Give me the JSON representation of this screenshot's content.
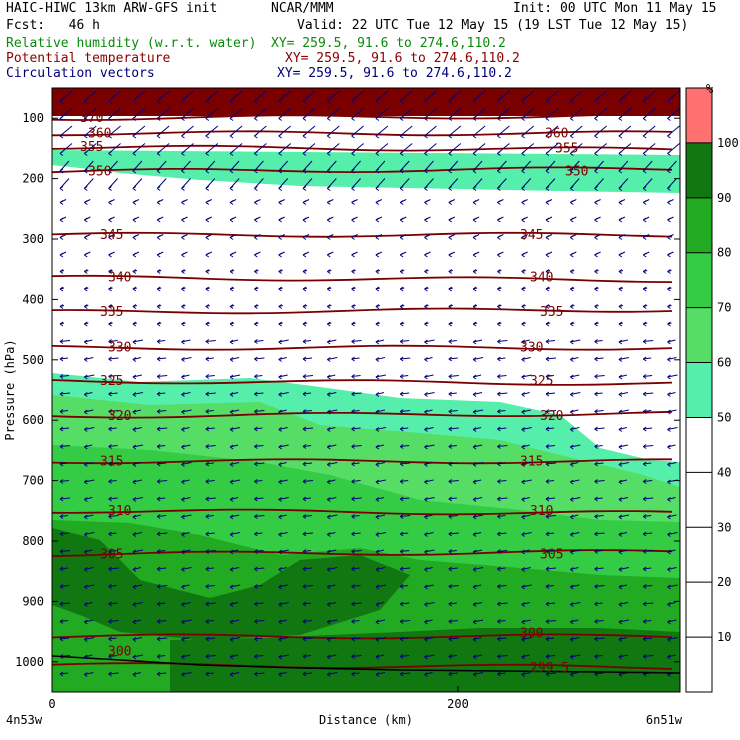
{
  "header": {
    "model_line": "HAIC-HIWC 13km ARW-GFS init",
    "org": "NCAR/MMM",
    "init": "Init: 00 UTC Mon 11 May 15",
    "fcst": "Fcst:   46 h",
    "valid": "Valid: 22 UTC Tue 12 May 15 (19 LST Tue 12 May 15)",
    "rh_label": "Relative humidity (w.r.t. water)",
    "rh_xy": "XY= 259.5, 91.6 to 274.6,110.2",
    "theta_label": "Potential temperature",
    "theta_xy": "XY= 259.5, 91.6 to 274.6,110.2",
    "circ_label": "Circulation vectors",
    "circ_xy": "XY= 259.5, 91.6 to 274.6,110.2"
  },
  "colors": {
    "theta_contour": "#7a0000",
    "vector": "#00007a",
    "rh_50_60": "#55eeaa",
    "rh_60_70": "#55dd66",
    "rh_70_80": "#33cc44",
    "rh_80_90": "#22aa22",
    "rh_90_100": "#117711",
    "rh_above_100": "#ff7070",
    "terrain": "#000000"
  },
  "chart_data": {
    "type": "cross-section",
    "xlabel": "Distance (km)",
    "ylabel": "Pressure (hPa)",
    "x_ticks": [
      "0",
      "200"
    ],
    "x_endpoints": {
      "left": "4n53w",
      "right": "6n51w"
    },
    "y_ticks": [
      "100",
      "200",
      "300",
      "400",
      "500",
      "600",
      "700",
      "800",
      "900",
      "1000"
    ],
    "ylim": [
      1050,
      50
    ],
    "colorbar": {
      "unit": "%",
      "ticks": [
        "10",
        "20",
        "30",
        "40",
        "50",
        "60",
        "70",
        "80",
        "90",
        "100"
      ],
      "bands": [
        {
          "from": 50,
          "to": 60,
          "color": "#55eeaa"
        },
        {
          "from": 60,
          "to": 70,
          "color": "#55dd66"
        },
        {
          "from": 70,
          "to": 80,
          "color": "#33cc44"
        },
        {
          "from": 80,
          "to": 90,
          "color": "#22aa22"
        },
        {
          "from": 90,
          "to": 100,
          "color": "#117711"
        },
        {
          "from": 100,
          "to": 110,
          "color": "#ff7070"
        }
      ]
    },
    "theta_contours": [
      {
        "level": "370",
        "pressure": 100
      },
      {
        "level": "360",
        "pressure": 125
      },
      {
        "level": "355",
        "pressure": 148
      },
      {
        "level": "350",
        "pressure": 188
      },
      {
        "level": "345",
        "pressure": 293
      },
      {
        "level": "340",
        "pressure": 364
      },
      {
        "level": "335",
        "pressure": 421
      },
      {
        "level": "330",
        "pressure": 480
      },
      {
        "level": "325",
        "pressure": 535
      },
      {
        "level": "320",
        "pressure": 593
      },
      {
        "level": "315",
        "pressure": 668
      },
      {
        "level": "310",
        "pressure": 750
      },
      {
        "level": "305",
        "pressure": 822
      },
      {
        "level": "300",
        "pressure": 958
      },
      {
        "level": "299.5",
        "pressure": 1005
      }
    ],
    "theta_labels_left": [
      {
        "text": "370",
        "pressure": 100
      },
      {
        "text": "360",
        "pressure": 125
      },
      {
        "text": "355",
        "pressure": 148
      },
      {
        "text": "350",
        "pressure": 188
      },
      {
        "text": "345",
        "pressure": 293
      },
      {
        "text": "340",
        "pressure": 364
      },
      {
        "text": "335",
        "pressure": 421
      },
      {
        "text": "330",
        "pressure": 480
      },
      {
        "text": "325",
        "pressure": 535
      },
      {
        "text": "320",
        "pressure": 593
      },
      {
        "text": "315",
        "pressure": 668
      },
      {
        "text": "310",
        "pressure": 750
      },
      {
        "text": "305",
        "pressure": 822
      },
      {
        "text": "300",
        "pressure": 983
      }
    ],
    "theta_labels_right": [
      {
        "text": "360",
        "pressure": 125
      },
      {
        "text": "355",
        "pressure": 150
      },
      {
        "text": "350",
        "pressure": 188
      },
      {
        "text": "345",
        "pressure": 293
      },
      {
        "text": "340",
        "pressure": 364
      },
      {
        "text": "335",
        "pressure": 421
      },
      {
        "text": "330",
        "pressure": 480
      },
      {
        "text": "325",
        "pressure": 535
      },
      {
        "text": "320",
        "pressure": 593
      },
      {
        "text": "315",
        "pressure": 668
      },
      {
        "text": "310",
        "pressure": 750
      },
      {
        "text": "305",
        "pressure": 822
      },
      {
        "text": "300",
        "pressure": 953
      },
      {
        "text": "299.5",
        "pressure": 1010
      }
    ],
    "grid": false
  }
}
